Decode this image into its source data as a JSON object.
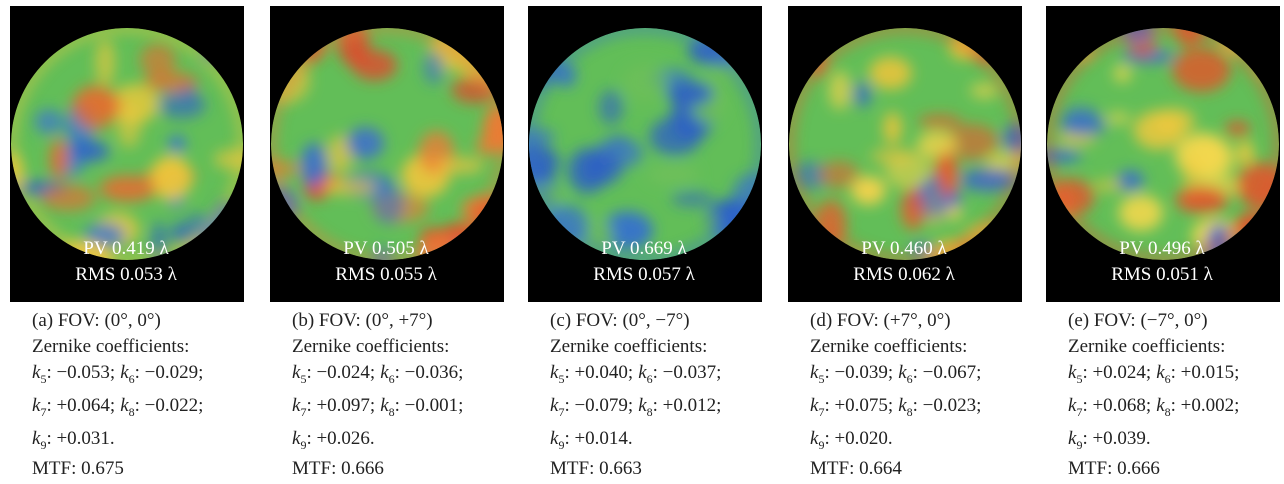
{
  "symbol": "k",
  "panels": [
    {
      "pv": "PV 0.419 λ",
      "rms": "RMS 0.053 λ",
      "caption": "(a) FOV: (0°, 0°)",
      "zernike_title": "Zernike coefficients:",
      "coefficients": [
        {
          "index": "5",
          "text": ": −0.053;"
        },
        {
          "index": "6",
          "text": ": −0.029;"
        },
        {
          "index": "7",
          "text": ": +0.064;"
        },
        {
          "index": "8",
          "text": ": −0.022;"
        },
        {
          "index": "9",
          "text": ": +0.031."
        }
      ],
      "mtf": "MTF: 0.675"
    },
    {
      "pv": "PV 0.505 λ",
      "rms": "RMS 0.055 λ",
      "caption": "(b) FOV: (0°, +7°)",
      "zernike_title": "Zernike coefficients:",
      "coefficients": [
        {
          "index": "5",
          "text": ": −0.024;"
        },
        {
          "index": "6",
          "text": ": −0.036;"
        },
        {
          "index": "7",
          "text": ": +0.097;"
        },
        {
          "index": "8",
          "text": ": −0.001;"
        },
        {
          "index": "9",
          "text": ": +0.026."
        }
      ],
      "mtf": "MTF: 0.666"
    },
    {
      "pv": "PV 0.669 λ",
      "rms": "RMS 0.057 λ",
      "caption": "(c) FOV: (0°, −7°)",
      "zernike_title": "Zernike coefficients:",
      "coefficients": [
        {
          "index": "5",
          "text": ": +0.040;"
        },
        {
          "index": "6",
          "text": ": −0.037;"
        },
        {
          "index": "7",
          "text": ": −0.079;"
        },
        {
          "index": "8",
          "text": ": +0.012;"
        },
        {
          "index": "9",
          "text": ": +0.014."
        }
      ],
      "mtf": "MTF: 0.663"
    },
    {
      "pv": "PV 0.460 λ",
      "rms": "RMS 0.062 λ",
      "caption": "(d) FOV: (+7°, 0°)",
      "zernike_title": "Zernike coefficients:",
      "coefficients": [
        {
          "index": "5",
          "text": ": −0.039;"
        },
        {
          "index": "6",
          "text": ": −0.067;"
        },
        {
          "index": "7",
          "text": ": +0.075;"
        },
        {
          "index": "8",
          "text": ": −0.023;"
        },
        {
          "index": "9",
          "text": ": +0.020."
        }
      ],
      "mtf": "MTF: 0.664"
    },
    {
      "pv": "PV 0.496 λ",
      "rms": "RMS 0.051 λ",
      "caption": "(e) FOV: (−7°, 0°)",
      "zernike_title": "Zernike coefficients:",
      "coefficients": [
        {
          "index": "5",
          "text": ": +0.024;"
        },
        {
          "index": "6",
          "text": ": +0.015;"
        },
        {
          "index": "7",
          "text": ": +0.068;"
        },
        {
          "index": "8",
          "text": ": +0.002;"
        },
        {
          "index": "9",
          "text": ": +0.039."
        }
      ],
      "mtf": "MTF: 0.666"
    }
  ]
}
